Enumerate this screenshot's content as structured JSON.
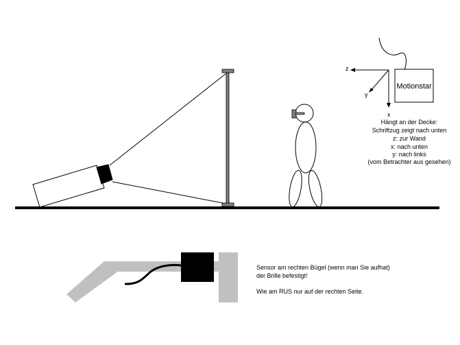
{
  "colors": {
    "ink": "#000000",
    "pole": "#808080",
    "glasses": "#c0c0c0",
    "background": "#ffffff"
  },
  "motionstar": {
    "label": "Motionstar",
    "axis_z": "z",
    "axis_y": "y",
    "axis_x": "x"
  },
  "notes": {
    "lines": [
      "Hängt an der Decke:",
      "Schriftzug zeigt nach unten",
      "z: zur Wand",
      "x: nach unten",
      "y: nach links",
      "(vom Betrachter aus gesehen)"
    ]
  },
  "sensor_notes": {
    "line1": "Sensor am rechten Bügel (wenn man Sie aufhat)",
    "line2": "der Brille befestigt!",
    "line3": "Wie am RUS nur auf der rechten Seite."
  },
  "icons": {
    "projector": "projector-icon",
    "screen": "projection-screen-icon",
    "person": "person-figure-icon",
    "tracker": "motion-tracker-box-icon",
    "glasses": "glasses-temple-icon",
    "sensor": "sensor-block-icon"
  }
}
